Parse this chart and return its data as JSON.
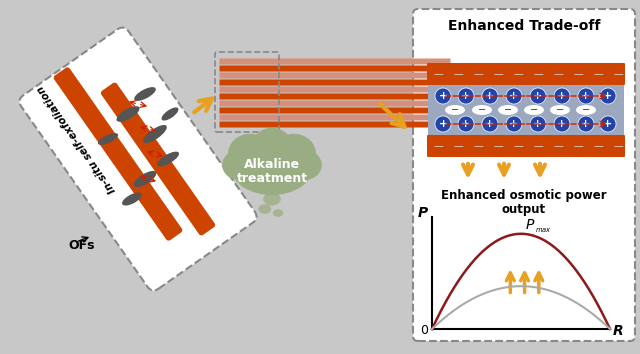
{
  "bg_color": "#c8c8c8",
  "fig_bg": "#c8c8c8",
  "left_box_color": "white",
  "right_box_color": "white",
  "left_box": {
    "label": "In-situ self-exfoliation",
    "ofs_label": "OFs"
  },
  "cloud_text": [
    "Alkaline",
    "treatment"
  ],
  "cloud_color": "#9aad82",
  "right_box_title": "Enhanced Trade-off",
  "right_box_subtitle1": "Enhanced osmotic power",
  "right_box_subtitle2": "output",
  "arrow_color": "#E8A020",
  "orange_rod_color": "#CC4400",
  "flake_color": "#555555",
  "membrane_color1": "#CC4400",
  "membrane_color2": "#D4876A",
  "channel_color": "#9ba8c0",
  "ion_plus_color": "#2244aa",
  "curve_color_high": "#8B1A1A",
  "curve_color_low": "#aaaaaa",
  "p_label": "P",
  "r_label": "R",
  "zero_label": "0",
  "pmax_label": "P",
  "pmax_sub": "max"
}
